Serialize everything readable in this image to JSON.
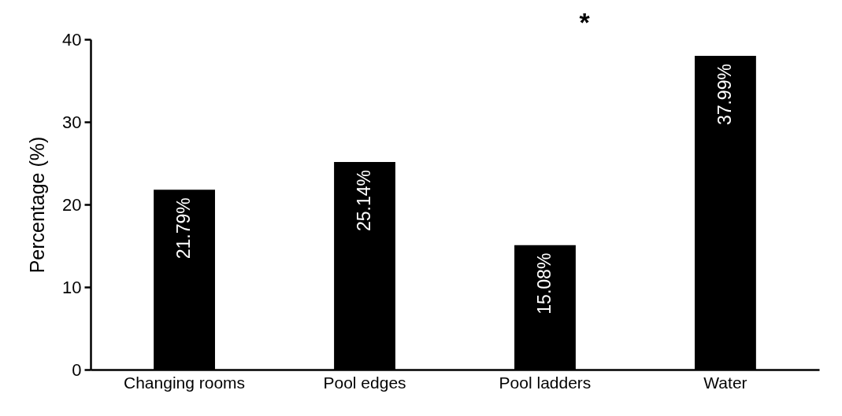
{
  "chart_data": {
    "type": "bar",
    "ylabel": "Percentage (%)",
    "categories": [
      "Changing rooms",
      "Pool edges",
      "Pool ladders",
      "Water"
    ],
    "values": [
      21.79,
      25.14,
      15.08,
      37.99
    ],
    "value_labels": [
      "21.79%",
      "25.14%",
      "15.08%",
      "37.99%"
    ],
    "color": "#000000",
    "ylim": [
      0,
      40
    ],
    "yticks": [
      0,
      10,
      20,
      30,
      40
    ],
    "grid": false,
    "annotations": [
      "*"
    ]
  }
}
